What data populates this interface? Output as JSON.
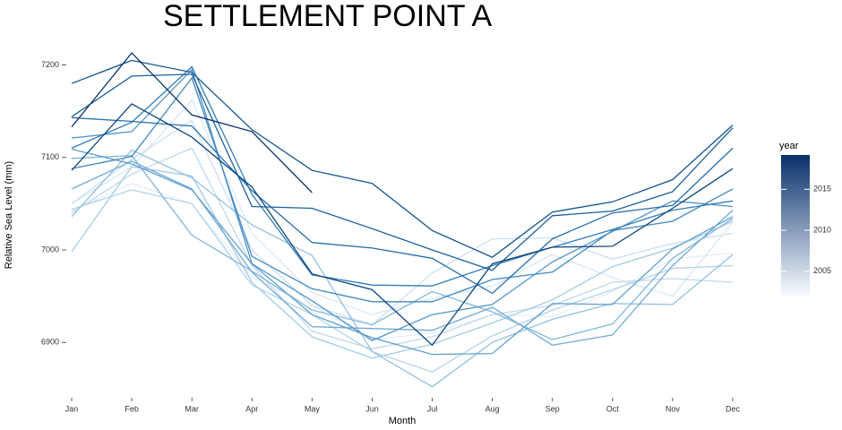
{
  "chart_data": {
    "type": "line",
    "title": "SETTLEMENT POINT A",
    "x_label": "Month",
    "y_label": "Relative Sea Level (mm)",
    "categories": [
      "Jan",
      "Feb",
      "Mar",
      "Apr",
      "May",
      "Jun",
      "Jul",
      "Aug",
      "Sep",
      "Oct",
      "Nov",
      "Dec"
    ],
    "ylim": [
      6844,
      7217
    ],
    "yticks": [
      6900,
      7000,
      7100,
      7200
    ],
    "grid": false,
    "legend": {
      "title": "year",
      "position": "right",
      "range": [
        2002,
        2019.2
      ],
      "ticks": [
        2005,
        2010,
        2015
      ],
      "colors": [
        "#f7fbff",
        "#08306b"
      ]
    },
    "series": [
      {
        "color": "#e3eef9",
        "values": [
          7042,
          7072,
          7050,
          6970,
          6940,
          6903,
          6910,
          6930,
          6928,
          6955,
          6990,
          6997
        ]
      },
      {
        "color": "#d8e7f5",
        "values": [
          7050,
          7090,
          7162,
          7018,
          6954,
          6930,
          6948,
          6961,
          6995,
          6970,
          6950,
          7030
        ]
      },
      {
        "color": "#cddff1",
        "values": [
          7050,
          7098,
          7140,
          7000,
          6940,
          6919,
          6975,
          7012,
          7013,
          6990,
          7007,
          7018
        ]
      },
      {
        "color": "#c0d8ed",
        "values": [
          7040,
          7082,
          7110,
          6983,
          6912,
          6893,
          6906,
          6930,
          6940,
          6965,
          6969,
          6965
        ]
      },
      {
        "color": "#b2d2e8",
        "values": [
          7044,
          7065,
          7050,
          6962,
          6930,
          6890,
          6868,
          6907,
          6935,
          6957,
          6980,
          6983
        ]
      },
      {
        "color": "#a3cbe3",
        "values": [
          6998,
          7090,
          7080,
          6965,
          6906,
          6883,
          6898,
          6921,
          6946,
          6982,
          7002,
          7031
        ]
      },
      {
        "color": "#92c0df",
        "values": [
          7036,
          7108,
          7078,
          7027,
          6994,
          6890,
          6852,
          6900,
          6925,
          6942,
          6941,
          6995
        ]
      },
      {
        "color": "#82b6da",
        "values": [
          7099,
          7102,
          7016,
          6977,
          6935,
          6919,
          6955,
          6933,
          6903,
          6920,
          6991,
          7034
        ]
      },
      {
        "color": "#71abd5",
        "values": [
          7066,
          7096,
          7066,
          6976,
          6917,
          6915,
          6913,
          6938,
          6897,
          6908,
          6983,
          7043
        ]
      },
      {
        "color": "#60a0cf",
        "values": [
          7109,
          7093,
          7065,
          6985,
          6930,
          6905,
          6887,
          6888,
          6942,
          6941,
          7001,
          7036
        ]
      },
      {
        "color": "#5094c8",
        "values": [
          7121,
          7128,
          7195,
          6985,
          6945,
          6902,
          6930,
          6941,
          6987,
          7020,
          7053,
          7047
        ]
      },
      {
        "color": "#4088c1",
        "values": [
          7088,
          7101,
          7186,
          6993,
          6958,
          6944,
          6944,
          6968,
          6976,
          7021,
          7031,
          7066
        ]
      },
      {
        "color": "#327bb8",
        "values": [
          7110,
          7138,
          7198,
          7060,
          6973,
          6962,
          6961,
          6983,
          7003,
          7022,
          7043,
          7053
        ]
      },
      {
        "color": "#266eae",
        "values": [
          7143,
          7139,
          7134,
          7064,
          7008,
          7002,
          6991,
          6953,
          7012,
          7040,
          7048,
          7110
        ]
      },
      {
        "color": "#1b619f",
        "values": [
          7144,
          7188,
          7190,
          7047,
          7045,
          7023,
          7000,
          6978,
          7037,
          7042,
          7063,
          7132
        ]
      },
      {
        "color": "#12548e",
        "values": [
          7180,
          7205,
          7192,
          7130,
          7086,
          7072,
          7021,
          6992,
          7041,
          7052,
          7076,
          7135
        ]
      },
      {
        "color": "#0c467d",
        "values": [
          7086,
          7158,
          7122,
          7068,
          6974,
          6957,
          6897,
          6985,
          7003,
          7004,
          7045,
          7088
        ]
      },
      {
        "color": "#08306b",
        "values": [
          7133,
          7213,
          7146,
          7128,
          7062,
          null,
          null,
          null,
          null,
          null,
          null,
          null
        ]
      }
    ]
  }
}
